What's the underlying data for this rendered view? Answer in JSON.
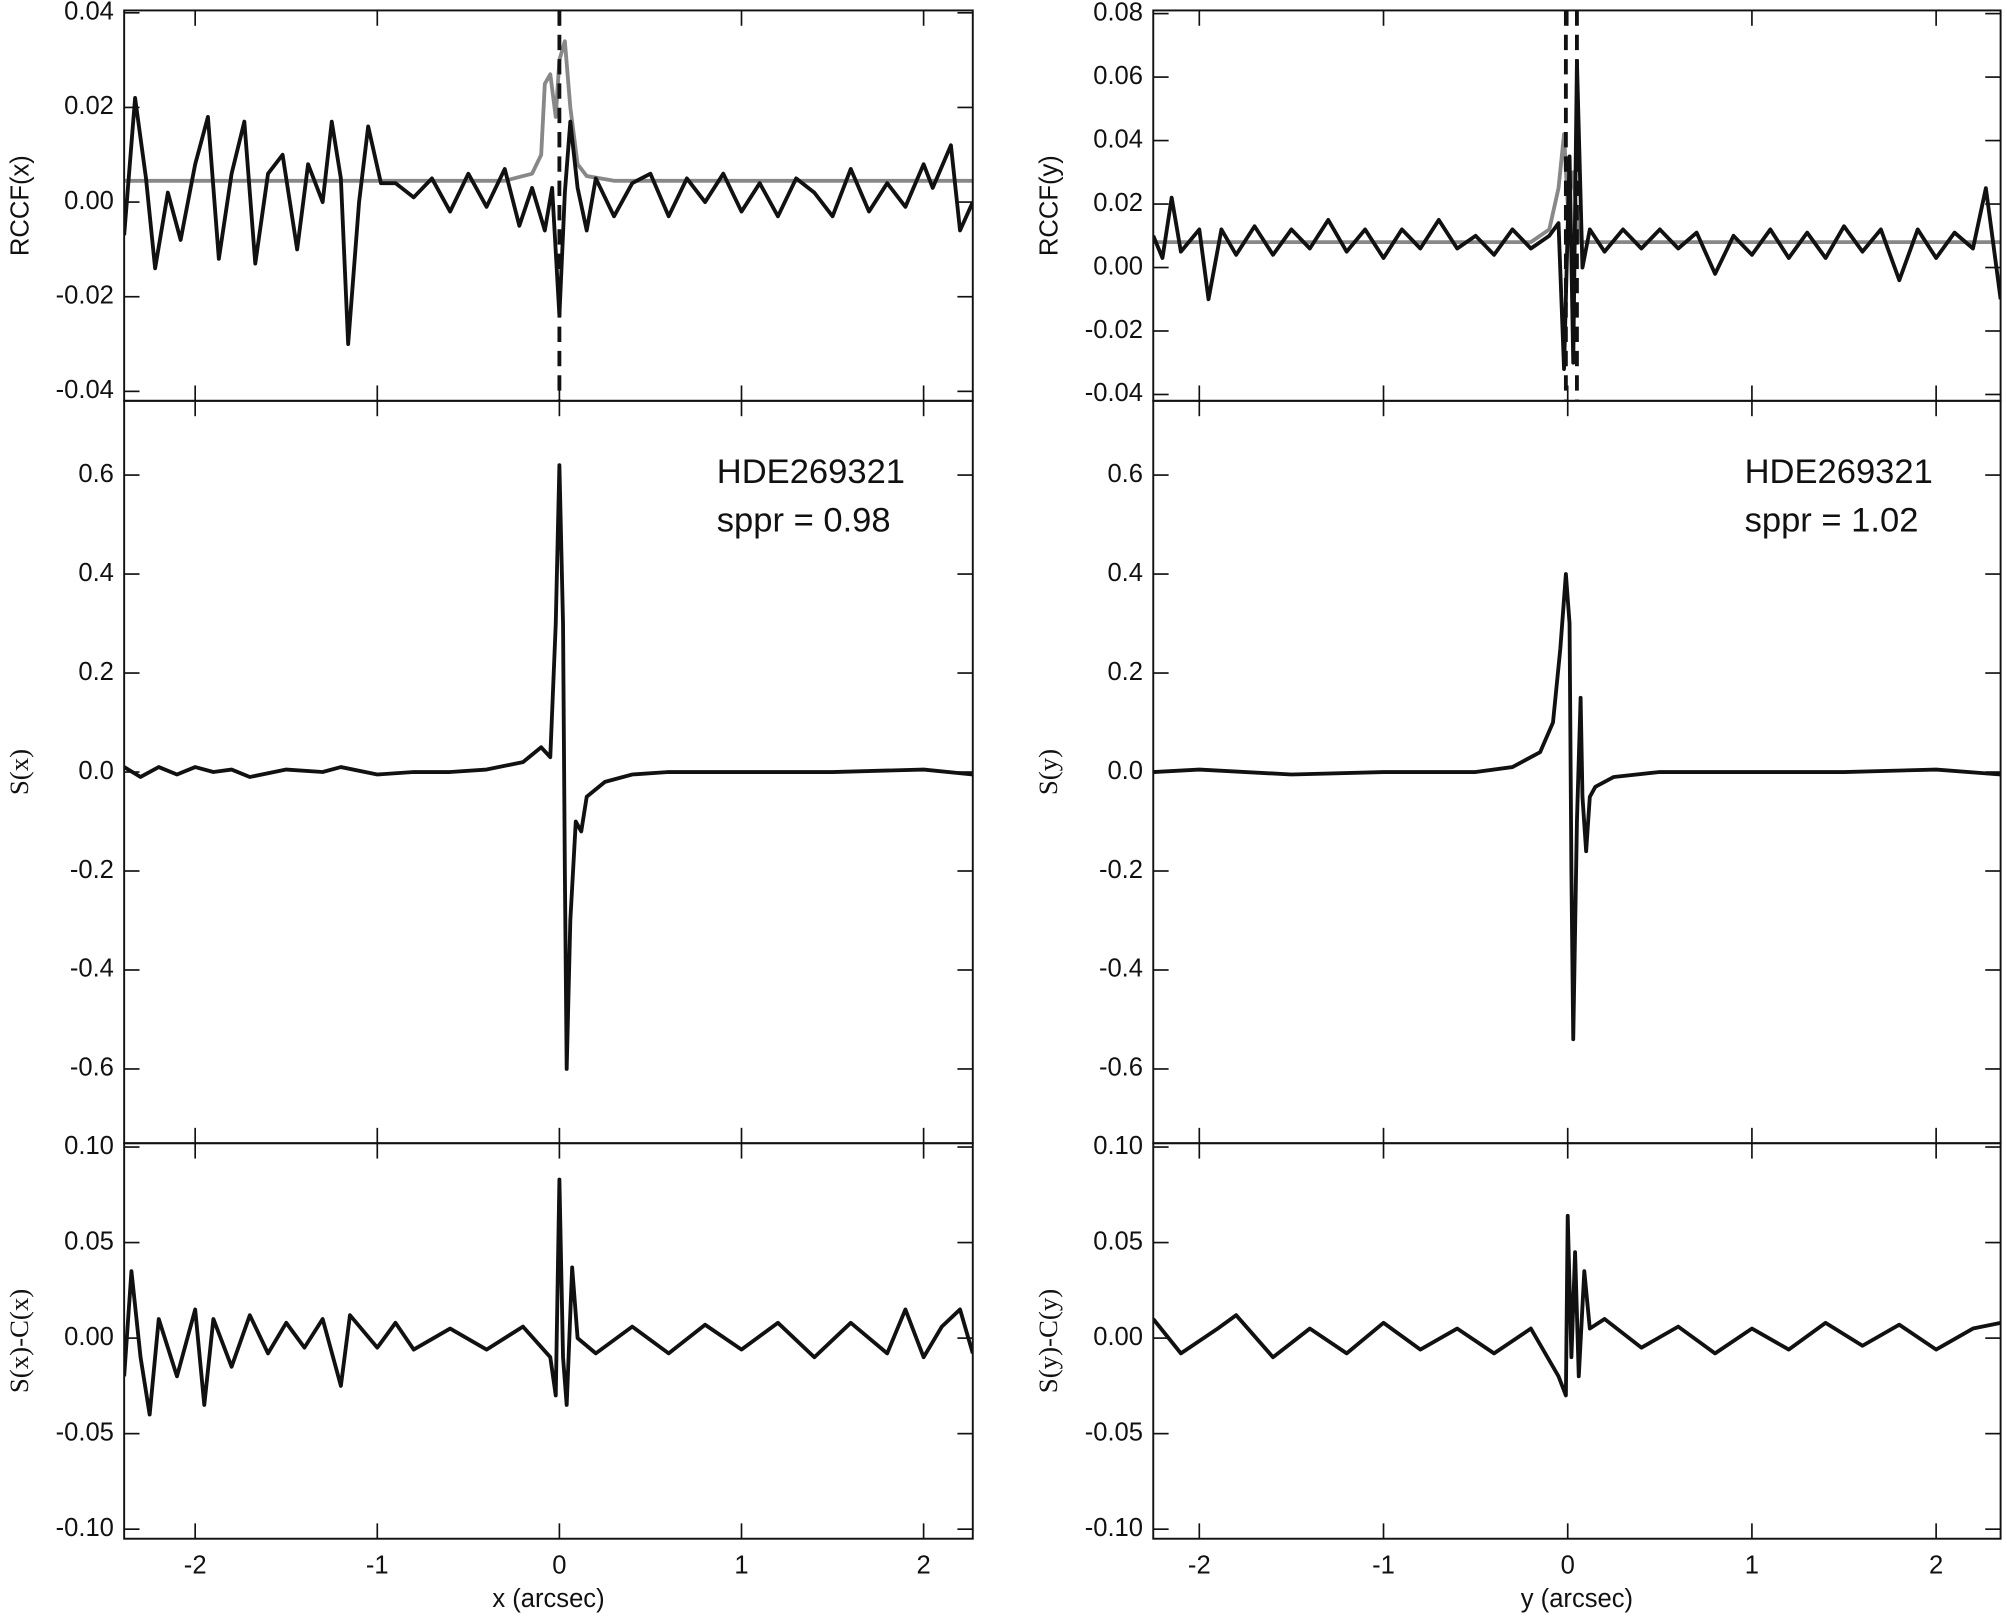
{
  "chart_data": [
    {
      "type": "line",
      "ylabel": "RCCF(x)",
      "xlim": [
        -2.39,
        2.27
      ],
      "ylim": [
        -0.042,
        0.0405
      ],
      "yticks": [
        0.04,
        0.02,
        {
          "value": 0,
          "label": "0.00"
        },
        -0.02,
        -0.04
      ],
      "vlines": [
        0
      ],
      "series": [
        {
          "color": "#888888",
          "x": [
            -2.39,
            -0.3,
            -0.15,
            -0.1,
            -0.08,
            -0.05,
            -0.02,
            0.0,
            0.03,
            0.06,
            0.1,
            0.15,
            0.3,
            2.27
          ],
          "values": [
            0.0045,
            0.0045,
            0.006,
            0.01,
            0.025,
            0.027,
            0.018,
            0.03,
            0.034,
            0.02,
            0.008,
            0.0055,
            0.0045,
            0.0045
          ]
        },
        {
          "color": "#111111",
          "x": [
            -2.39,
            -2.33,
            -2.27,
            -2.22,
            -2.15,
            -2.08,
            -2.0,
            -1.93,
            -1.87,
            -1.8,
            -1.73,
            -1.67,
            -1.6,
            -1.52,
            -1.44,
            -1.38,
            -1.3,
            -1.25,
            -1.2,
            -1.16,
            -1.1,
            -1.05,
            -0.98,
            -0.9,
            -0.8,
            -0.7,
            -0.6,
            -0.5,
            -0.4,
            -0.3,
            -0.22,
            -0.15,
            -0.08,
            -0.04,
            0.0,
            0.03,
            0.06,
            0.1,
            0.15,
            0.2,
            0.3,
            0.4,
            0.5,
            0.6,
            0.7,
            0.8,
            0.9,
            1.0,
            1.1,
            1.2,
            1.3,
            1.4,
            1.5,
            1.6,
            1.7,
            1.8,
            1.9,
            2.0,
            2.05,
            2.15,
            2.2,
            2.27
          ],
          "values": [
            -0.007,
            0.022,
            0.005,
            -0.014,
            0.002,
            -0.008,
            0.008,
            0.018,
            -0.012,
            0.006,
            0.017,
            -0.013,
            0.006,
            0.01,
            -0.01,
            0.008,
            0.0,
            0.017,
            0.005,
            -0.03,
            0.0,
            0.016,
            0.004,
            0.004,
            0.001,
            0.005,
            -0.002,
            0.006,
            -0.001,
            0.007,
            -0.005,
            0.003,
            -0.006,
            0.003,
            -0.024,
            0.002,
            0.017,
            0.003,
            -0.006,
            0.005,
            -0.003,
            0.004,
            0.006,
            -0.003,
            0.005,
            0.0,
            0.006,
            -0.002,
            0.004,
            -0.003,
            0.005,
            0.002,
            -0.003,
            0.007,
            -0.002,
            0.004,
            -0.001,
            0.008,
            0.003,
            0.012,
            -0.006,
            0.0
          ]
        }
      ]
    },
    {
      "type": "line",
      "ylabel": "RCCF(y)",
      "xlim": [
        -2.25,
        2.35
      ],
      "ylim": [
        -0.042,
        0.081
      ],
      "yticks": [
        0.08,
        0.06,
        0.04,
        0.02,
        {
          "value": 0,
          "label": "0.00"
        },
        -0.02,
        -0.04
      ],
      "vlines": [
        -0.01,
        0.05
      ],
      "series": [
        {
          "color": "#888888",
          "x": [
            -2.25,
            -0.2,
            -0.1,
            -0.05,
            -0.02,
            0.0,
            0.03,
            0.06,
            2.35
          ],
          "values": [
            0.008,
            0.008,
            0.012,
            0.025,
            0.042,
            0.02,
            0.03,
            0.008,
            0.008
          ]
        },
        {
          "color": "#111111",
          "x": [
            -2.25,
            -2.2,
            -2.15,
            -2.1,
            -2.0,
            -1.95,
            -1.88,
            -1.8,
            -1.7,
            -1.6,
            -1.5,
            -1.4,
            -1.3,
            -1.2,
            -1.1,
            -1.0,
            -0.9,
            -0.8,
            -0.7,
            -0.6,
            -0.5,
            -0.4,
            -0.3,
            -0.2,
            -0.1,
            -0.05,
            -0.02,
            0.01,
            0.03,
            0.05,
            0.08,
            0.12,
            0.2,
            0.3,
            0.4,
            0.5,
            0.6,
            0.7,
            0.8,
            0.9,
            1.0,
            1.1,
            1.2,
            1.3,
            1.4,
            1.5,
            1.6,
            1.7,
            1.8,
            1.9,
            2.0,
            2.1,
            2.2,
            2.27,
            2.3,
            2.35
          ],
          "values": [
            0.01,
            0.003,
            0.022,
            0.005,
            0.012,
            -0.01,
            0.012,
            0.004,
            0.013,
            0.004,
            0.012,
            0.006,
            0.015,
            0.005,
            0.012,
            0.003,
            0.012,
            0.006,
            0.015,
            0.006,
            0.01,
            0.004,
            0.012,
            0.006,
            0.01,
            0.014,
            -0.032,
            0.035,
            -0.03,
            0.065,
            0.0,
            0.012,
            0.005,
            0.012,
            0.006,
            0.012,
            0.006,
            0.011,
            -0.002,
            0.01,
            0.004,
            0.012,
            0.003,
            0.011,
            0.003,
            0.013,
            0.005,
            0.012,
            -0.004,
            0.012,
            0.003,
            0.011,
            0.006,
            0.025,
            0.012,
            -0.01
          ]
        }
      ]
    },
    {
      "type": "line",
      "ylabel": "S(x)",
      "xlim": [
        -2.39,
        2.27
      ],
      "ylim": [
        -0.75,
        0.75
      ],
      "yticks": [
        0.6,
        0.4,
        0.2,
        {
          "value": 0,
          "label": "0.0"
        },
        -0.2,
        -0.4,
        -0.6
      ],
      "annotations": [
        "HDE269321",
        "sppr = 0.98"
      ],
      "series": [
        {
          "color": "#111111",
          "x": [
            -2.39,
            -2.3,
            -2.2,
            -2.1,
            -2.0,
            -1.9,
            -1.8,
            -1.7,
            -1.5,
            -1.3,
            -1.2,
            -1.0,
            -0.8,
            -0.6,
            -0.4,
            -0.2,
            -0.1,
            -0.05,
            -0.02,
            0.0,
            0.02,
            0.03,
            0.04,
            0.06,
            0.09,
            0.12,
            0.15,
            0.25,
            0.4,
            0.6,
            1.0,
            1.5,
            2.0,
            2.27
          ],
          "values": [
            0.01,
            -0.01,
            0.01,
            -0.005,
            0.01,
            0.0,
            0.005,
            -0.01,
            0.005,
            0.0,
            0.01,
            -0.005,
            0.0,
            0.0,
            0.005,
            0.02,
            0.05,
            0.03,
            0.3,
            0.62,
            0.3,
            -0.2,
            -0.6,
            -0.3,
            -0.1,
            -0.12,
            -0.05,
            -0.02,
            -0.005,
            0.0,
            0.0,
            0.0,
            0.005,
            -0.005
          ]
        }
      ]
    },
    {
      "type": "line",
      "ylabel": "S(y)",
      "xlim": [
        -2.25,
        2.35
      ],
      "ylim": [
        -0.75,
        0.75
      ],
      "yticks": [
        0.6,
        0.4,
        0.2,
        {
          "value": 0,
          "label": "0.0"
        },
        -0.2,
        -0.4,
        -0.6
      ],
      "annotations": [
        "HDE269321",
        "sppr = 1.02"
      ],
      "series": [
        {
          "color": "#111111",
          "x": [
            -2.25,
            -2.0,
            -1.5,
            -1.0,
            -0.5,
            -0.3,
            -0.15,
            -0.08,
            -0.04,
            -0.01,
            0.01,
            0.02,
            0.03,
            0.05,
            0.07,
            0.08,
            0.1,
            0.12,
            0.15,
            0.25,
            0.5,
            1.0,
            1.5,
            2.0,
            2.35
          ],
          "values": [
            0.0,
            0.005,
            -0.005,
            0.0,
            0.0,
            0.01,
            0.04,
            0.1,
            0.25,
            0.4,
            0.3,
            -0.2,
            -0.54,
            -0.1,
            0.15,
            -0.05,
            -0.16,
            -0.05,
            -0.03,
            -0.01,
            0.0,
            0.0,
            0.0,
            0.005,
            -0.005
          ]
        }
      ]
    },
    {
      "type": "line",
      "ylabel": "S(x)-C(x)",
      "xlabel": "x (arcsec)",
      "xlim": [
        -2.39,
        2.27
      ],
      "ylim": [
        -0.105,
        0.102
      ],
      "xticks": [
        -2,
        -1,
        0,
        1,
        2
      ],
      "yticks": [
        {
          "value": 0.1,
          "label": "0.10"
        },
        0.05,
        {
          "value": 0,
          "label": "0.00"
        },
        -0.05,
        {
          "value": -0.1,
          "label": "-0.10"
        }
      ],
      "series": [
        {
          "color": "#111111",
          "x": [
            -2.39,
            -2.35,
            -2.3,
            -2.25,
            -2.2,
            -2.1,
            -2.0,
            -1.95,
            -1.9,
            -1.8,
            -1.7,
            -1.6,
            -1.5,
            -1.4,
            -1.3,
            -1.2,
            -1.15,
            -1.0,
            -0.9,
            -0.8,
            -0.6,
            -0.4,
            -0.2,
            -0.05,
            -0.02,
            0.0,
            0.02,
            0.04,
            0.07,
            0.1,
            0.2,
            0.4,
            0.6,
            0.8,
            1.0,
            1.2,
            1.4,
            1.6,
            1.8,
            1.9,
            2.0,
            2.1,
            2.2,
            2.27
          ],
          "values": [
            -0.02,
            0.035,
            -0.01,
            -0.04,
            0.01,
            -0.02,
            0.015,
            -0.035,
            0.01,
            -0.015,
            0.012,
            -0.008,
            0.008,
            -0.005,
            0.01,
            -0.025,
            0.012,
            -0.005,
            0.008,
            -0.006,
            0.005,
            -0.006,
            0.006,
            -0.01,
            -0.03,
            0.083,
            -0.01,
            -0.035,
            0.037,
            0.0,
            -0.008,
            0.006,
            -0.008,
            0.007,
            -0.006,
            0.008,
            -0.01,
            0.008,
            -0.008,
            0.015,
            -0.01,
            0.006,
            0.015,
            -0.008
          ]
        }
      ]
    },
    {
      "type": "line",
      "ylabel": "S(y)-C(y)",
      "xlabel": "y (arcsec)",
      "xlim": [
        -2.25,
        2.35
      ],
      "ylim": [
        -0.105,
        0.102
      ],
      "xticks": [
        -2,
        -1,
        0,
        1,
        2
      ],
      "yticks": [
        {
          "value": 0.1,
          "label": "0.10"
        },
        0.05,
        {
          "value": 0,
          "label": "0.00"
        },
        -0.05,
        {
          "value": -0.1,
          "label": "-0.10"
        }
      ],
      "series": [
        {
          "color": "#111111",
          "x": [
            -2.25,
            -2.1,
            -1.9,
            -1.8,
            -1.6,
            -1.4,
            -1.2,
            -1.0,
            -0.8,
            -0.6,
            -0.4,
            -0.2,
            -0.05,
            -0.01,
            0.0,
            0.02,
            0.04,
            0.06,
            0.09,
            0.12,
            0.2,
            0.4,
            0.6,
            0.8,
            1.0,
            1.2,
            1.4,
            1.6,
            1.8,
            2.0,
            2.2,
            2.35
          ],
          "values": [
            0.01,
            -0.008,
            0.005,
            0.012,
            -0.01,
            0.005,
            -0.008,
            0.008,
            -0.006,
            0.005,
            -0.008,
            0.005,
            -0.02,
            -0.03,
            0.064,
            -0.01,
            0.045,
            -0.02,
            0.035,
            0.005,
            0.01,
            -0.005,
            0.006,
            -0.008,
            0.005,
            -0.006,
            0.008,
            -0.004,
            0.007,
            -0.006,
            0.005,
            0.008
          ]
        }
      ]
    }
  ]
}
